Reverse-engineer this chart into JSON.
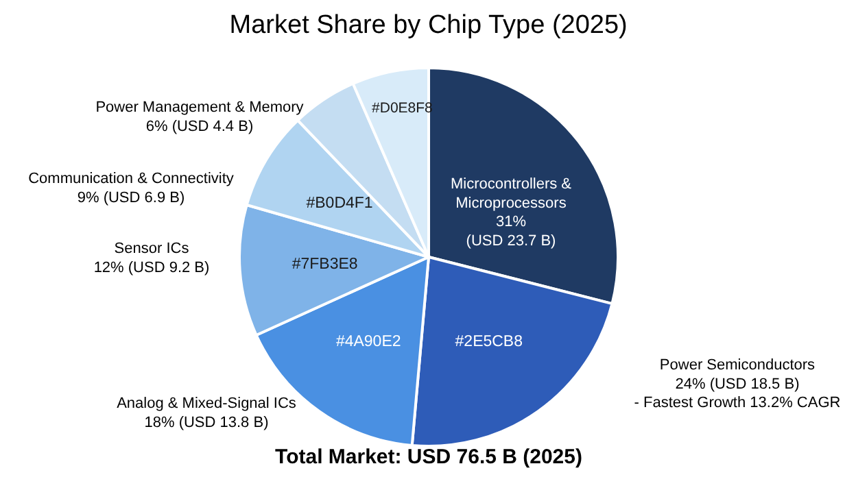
{
  "chart_data": {
    "type": "pie",
    "title": "Market Share by Chip Type (2025)",
    "categories": [
      "Microcontrollers & Microprocessors",
      "Power Semiconductors",
      "Analog & Mixed-Signal ICs",
      "Sensor ICs",
      "Communication & Connectivity",
      "Power Management & Memory",
      null
    ],
    "values": [
      31,
      24,
      18,
      12,
      9,
      6,
      7
    ],
    "colors": [
      "#1f3a63",
      "#2e5cb8",
      "#4a90e2",
      "#7fb3e8",
      "#b0d4f1",
      "#c4ddf2",
      "#d8ebf9"
    ],
    "value_labels": [
      "31%\n(USD 23.7 B)",
      "24% (USD 18.5 B)\n- Fastest Growth 13.2% CAGR",
      "18% (USD 13.8 B)",
      "12% (USD 9.2 B)",
      "9% (USD 6.9 B)",
      "6% (USD 4.4 B)",
      null
    ],
    "annotations": [
      "Total Market: USD 76.5 B (2025)",
      "#2E5CB8",
      "#4A90E2",
      "#7FB3E8",
      "#B0D4F1",
      "#D0E8F8"
    ]
  }
}
